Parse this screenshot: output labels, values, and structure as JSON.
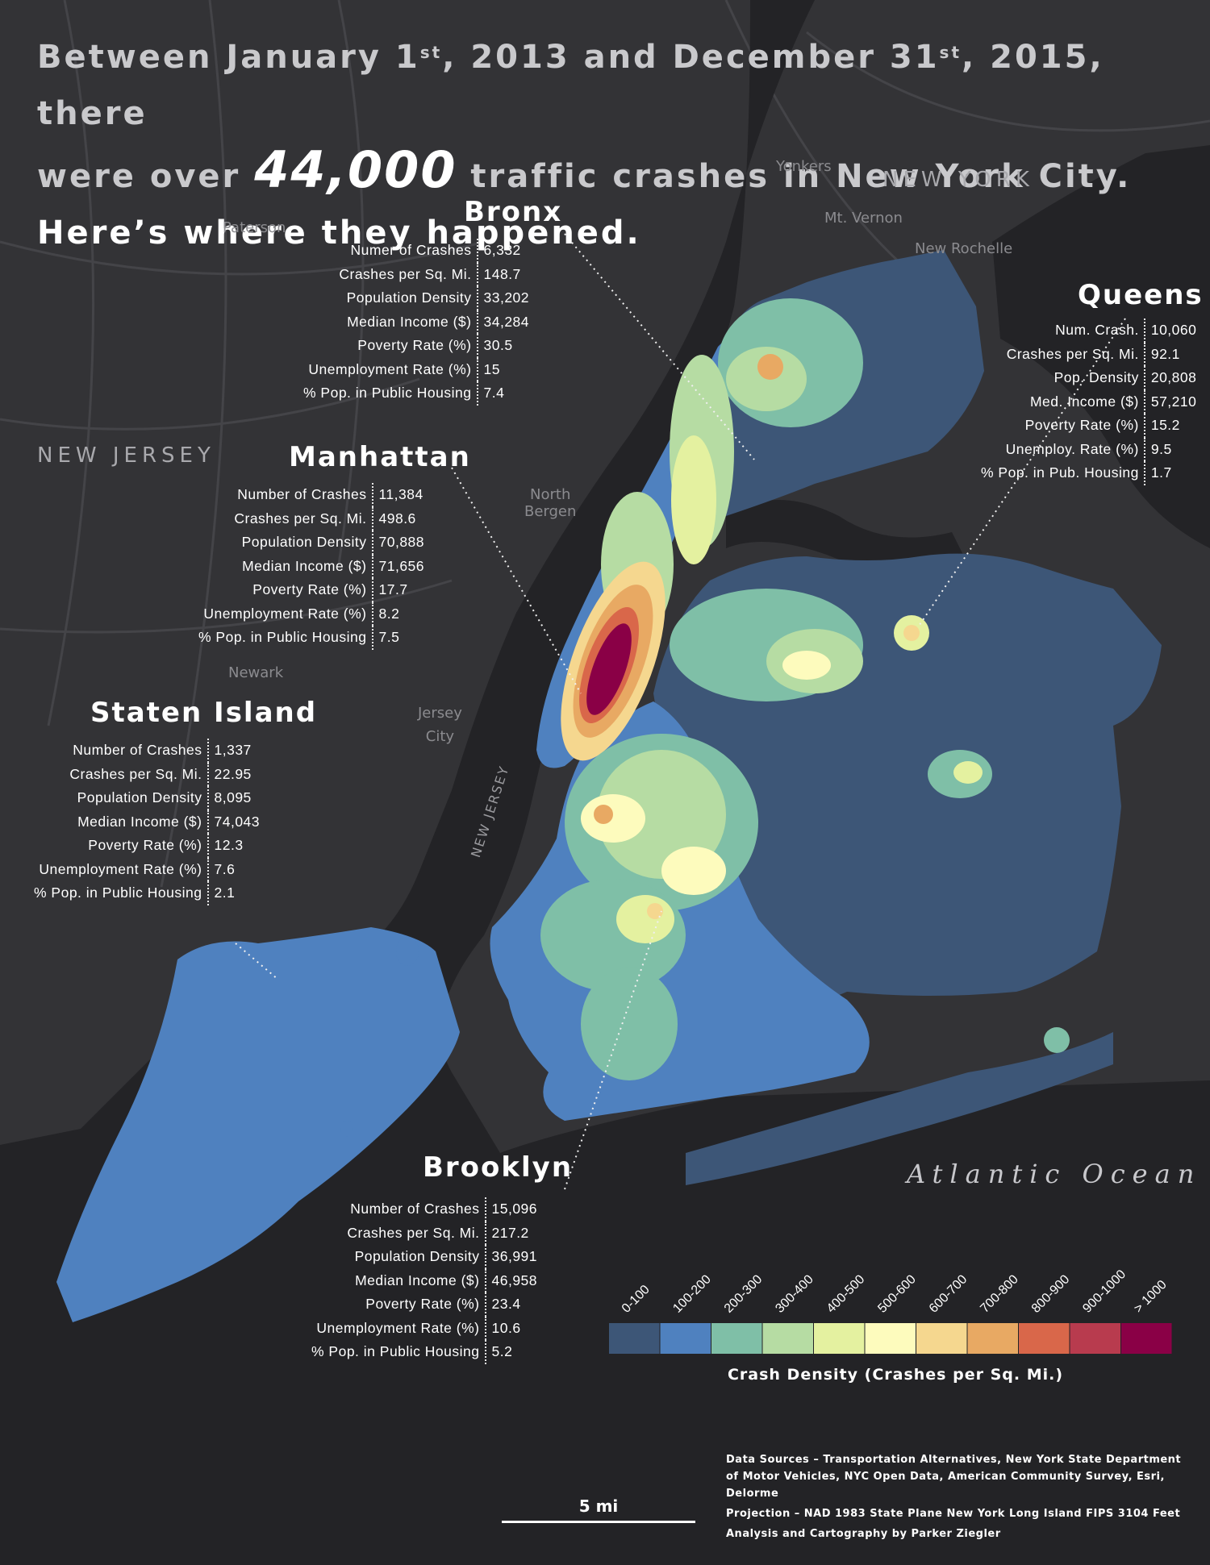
{
  "headline": {
    "line1_a": "Between January 1",
    "line1_sup1": "st",
    "line1_b": ", 2013 and December 31",
    "line1_sup2": "st",
    "line1_c": ", 2015, there",
    "line2_a": "were over ",
    "line2_big": "44,000",
    "line2_b": " traffic crashes in New York City.",
    "line3": "Here’s where they happened."
  },
  "places": {
    "yonkers": "Yonkers",
    "mt_vernon": "Mt. Vernon",
    "new_rochelle": "New Rochelle",
    "paterson": "Paterson",
    "north_bergen_1": "North",
    "north_bergen_2": "Bergen",
    "newark": "Newark",
    "jersey_city_1": "Jersey",
    "jersey_city_2": "City"
  },
  "regions": {
    "new_york": "NEW YORK",
    "new_jersey": "NEW JERSEY",
    "new_jersey_road": "NEW JERSEY",
    "ocean": "Atlantic Ocean"
  },
  "boroughs": {
    "bronx": {
      "name": "Bronx",
      "rows": [
        {
          "label": "Numer of Crashes",
          "value": "6,332"
        },
        {
          "label": "Crashes per Sq. Mi.",
          "value": "148.7"
        },
        {
          "label": "Population Density",
          "value": "33,202"
        },
        {
          "label": "Median Income ($)",
          "value": "34,284"
        },
        {
          "label": "Poverty Rate (%)",
          "value": "30.5"
        },
        {
          "label": "Unemployment Rate (%)",
          "value": "15"
        },
        {
          "label": "% Pop. in Public Housing",
          "value": "7.4"
        }
      ]
    },
    "manhattan": {
      "name": "Manhattan",
      "rows": [
        {
          "label": "Number of Crashes",
          "value": "11,384"
        },
        {
          "label": "Crashes per Sq. Mi.",
          "value": "498.6"
        },
        {
          "label": "Population Density",
          "value": "70,888"
        },
        {
          "label": "Median Income ($)",
          "value": "71,656"
        },
        {
          "label": "Poverty Rate (%)",
          "value": "17.7"
        },
        {
          "label": "Unemployment Rate (%)",
          "value": "8.2"
        },
        {
          "label": "% Pop. in Public Housing",
          "value": "7.5"
        }
      ]
    },
    "queens": {
      "name": "Queens",
      "rows": [
        {
          "label": "Num. Crash.",
          "value": "10,060"
        },
        {
          "label": "Crashes per Sq. Mi.",
          "value": "92.1"
        },
        {
          "label": "Pop. Density",
          "value": "20,808"
        },
        {
          "label": "Med. Income ($)",
          "value": "57,210"
        },
        {
          "label": "Poverty Rate (%)",
          "value": "15.2"
        },
        {
          "label": "Unemploy. Rate (%)",
          "value": "9.5"
        },
        {
          "label": "% Pop. in Pub. Housing",
          "value": "1.7"
        }
      ]
    },
    "staten_island": {
      "name": "Staten Island",
      "rows": [
        {
          "label": "Number of Crashes",
          "value": "1,337"
        },
        {
          "label": "Crashes per Sq. Mi.",
          "value": "22.95"
        },
        {
          "label": "Population Density",
          "value": "8,095"
        },
        {
          "label": "Median Income ($)",
          "value": "74,043"
        },
        {
          "label": "Poverty Rate (%)",
          "value": "12.3"
        },
        {
          "label": "Unemployment Rate (%)",
          "value": "7.6"
        },
        {
          "label": "% Pop. in Public Housing",
          "value": "2.1"
        }
      ]
    },
    "brooklyn": {
      "name": "Brooklyn",
      "rows": [
        {
          "label": "Number of Crashes",
          "value": "15,096"
        },
        {
          "label": "Crashes per Sq. Mi.",
          "value": "217.2"
        },
        {
          "label": "Population Density",
          "value": "36,991"
        },
        {
          "label": "Median Income ($)",
          "value": "46,958"
        },
        {
          "label": "Poverty Rate (%)",
          "value": "23.4"
        },
        {
          "label": "Unemployment Rate (%)",
          "value": "10.6"
        },
        {
          "label": "% Pop. in Public Housing",
          "value": "5.2"
        }
      ]
    }
  },
  "legend": {
    "title": "Crash Density (Crashes per Sq. Mi.)",
    "classes": [
      {
        "label": "0-100",
        "color": "#3d5677"
      },
      {
        "label": "100-200",
        "color": "#4f81bf"
      },
      {
        "label": "200-300",
        "color": "#7fbfa7"
      },
      {
        "label": "300-400",
        "color": "#b6dca3"
      },
      {
        "label": "400-500",
        "color": "#e4f1a0"
      },
      {
        "label": "500-600",
        "color": "#fdfbbd"
      },
      {
        "label": "600-700",
        "color": "#f5d78f"
      },
      {
        "label": "700-800",
        "color": "#e8a963"
      },
      {
        "label": "800-900",
        "color": "#d9674a"
      },
      {
        "label": "900-1000",
        "color": "#b83b4e"
      },
      {
        "label": "> 1000",
        "color": "#8a0046"
      }
    ]
  },
  "scale": {
    "label": "5 mi"
  },
  "sources": {
    "data": "Data Sources – Transportation Alternatives, New York State Department of Motor Vehicles, NYC Open Data, American Community Survey, Esri, Delorme",
    "projection": "Projection – NAD 1983 State Plane New York Long Island FIPS 3104 Feet",
    "credit": "Analysis and Cartography by Parker Ziegler"
  }
}
